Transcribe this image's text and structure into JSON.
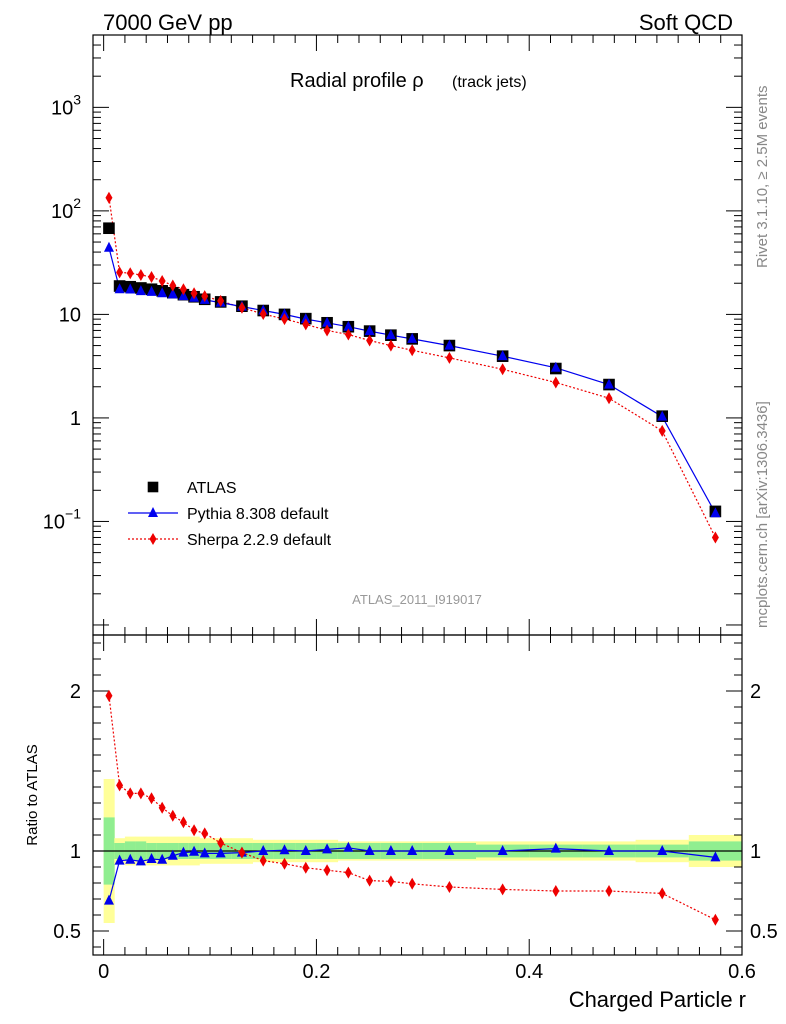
{
  "header": {
    "left": "7000 GeV pp",
    "right": "Soft QCD"
  },
  "side_labels": {
    "upper": "Rivet 3.1.10, ≥ 2.5M events",
    "lower": "mcplots.cern.ch [arXiv:1306.3436]"
  },
  "colors": {
    "atlas": "#000000",
    "pythia": "#0000ee",
    "sherpa": "#ee0000",
    "band_inner": "#90ee90",
    "band_outer": "#ffff99"
  },
  "chart_data": [
    {
      "type": "line",
      "title": "Radial profile ρ",
      "title_suffix": "(track jets)",
      "watermark": "ATLAS_2011_I919017",
      "ylog": true,
      "xlim": [
        -0.01,
        0.6
      ],
      "ylim": [
        0.008,
        5000
      ],
      "y_ticks": [
        {
          "value": 1000,
          "label": "10",
          "exp": "3"
        },
        {
          "value": 100,
          "label": "10",
          "exp": "2"
        },
        {
          "value": 10,
          "label": "10",
          "exp": ""
        },
        {
          "value": 1,
          "label": "1",
          "exp": ""
        },
        {
          "value": 0.1,
          "label": "10",
          "exp": "−1"
        }
      ],
      "x": [
        0.005,
        0.015,
        0.025,
        0.035,
        0.045,
        0.055,
        0.065,
        0.075,
        0.085,
        0.095,
        0.11,
        0.13,
        0.15,
        0.17,
        0.19,
        0.21,
        0.23,
        0.25,
        0.27,
        0.29,
        0.325,
        0.375,
        0.425,
        0.475,
        0.525,
        0.575
      ],
      "legend": [
        "ATLAS",
        "Pythia 8.308 default",
        "Sherpa 2.2.9 default"
      ],
      "legend_position": "bottom-left",
      "series": [
        {
          "name": "ATLAS",
          "marker": "square",
          "values": [
            68,
            18.8,
            18.5,
            18.0,
            17.5,
            16.9,
            16.2,
            15.5,
            14.8,
            14.0,
            13.2,
            12.0,
            10.9,
            10.0,
            9.1,
            8.3,
            7.6,
            6.9,
            6.3,
            5.8,
            5.0,
            3.95,
            3.0,
            2.1,
            1.04,
            0.125
          ]
        },
        {
          "name": "Pythia 8.308 default",
          "marker": "triangle",
          "values": [
            44,
            17.5,
            17.4,
            16.8,
            16.5,
            16.0,
            15.6,
            15.0,
            14.5,
            13.8,
            13.0,
            11.9,
            10.9,
            10.0,
            9.0,
            8.3,
            7.6,
            6.9,
            6.3,
            5.8,
            5.0,
            3.95,
            3.05,
            2.1,
            1.03,
            0.12
          ]
        },
        {
          "name": "Sherpa 2.2.9 default",
          "marker": "diamond",
          "values": [
            134,
            25.5,
            25.0,
            24.0,
            23.0,
            21.0,
            19.0,
            17.5,
            16.0,
            15.0,
            13.5,
            11.6,
            10.1,
            9.0,
            8.0,
            7.0,
            6.4,
            5.6,
            5.0,
            4.5,
            3.8,
            2.95,
            2.2,
            1.55,
            0.75,
            0.07
          ]
        }
      ]
    },
    {
      "type": "line",
      "ylabel": "Ratio to ATLAS",
      "xlabel": "Charged Particle r",
      "xlim": [
        -0.01,
        0.6
      ],
      "ylim": [
        0.35,
        2.35
      ],
      "x_ticks": [
        {
          "value": 0,
          "label": "0"
        },
        {
          "value": 0.2,
          "label": "0.2"
        },
        {
          "value": 0.4,
          "label": "0.4"
        },
        {
          "value": 0.6,
          "label": "0.6"
        }
      ],
      "y_ticks": [
        {
          "value": 2,
          "label": "2"
        },
        {
          "value": 1,
          "label": "1"
        },
        {
          "value": 0.5,
          "label": "0.5"
        }
      ],
      "x_edges": [
        0,
        0.01,
        0.02,
        0.03,
        0.04,
        0.05,
        0.06,
        0.07,
        0.08,
        0.09,
        0.1,
        0.12,
        0.14,
        0.16,
        0.18,
        0.2,
        0.22,
        0.24,
        0.26,
        0.28,
        0.3,
        0.35,
        0.4,
        0.45,
        0.5,
        0.55,
        0.6
      ],
      "band_inner": [
        0.21,
        0.05,
        0.06,
        0.06,
        0.05,
        0.05,
        0.05,
        0.05,
        0.05,
        0.05,
        0.05,
        0.05,
        0.05,
        0.05,
        0.05,
        0.05,
        0.05,
        0.05,
        0.05,
        0.05,
        0.05,
        0.04,
        0.04,
        0.04,
        0.04,
        0.06
      ],
      "band_outer": [
        0.45,
        0.08,
        0.09,
        0.09,
        0.09,
        0.09,
        0.09,
        0.09,
        0.09,
        0.08,
        0.08,
        0.08,
        0.07,
        0.07,
        0.07,
        0.07,
        0.06,
        0.06,
        0.06,
        0.06,
        0.06,
        0.06,
        0.06,
        0.06,
        0.07,
        0.1
      ],
      "x": [
        0.005,
        0.015,
        0.025,
        0.035,
        0.045,
        0.055,
        0.065,
        0.075,
        0.085,
        0.095,
        0.11,
        0.13,
        0.15,
        0.17,
        0.19,
        0.21,
        0.23,
        0.25,
        0.27,
        0.29,
        0.325,
        0.375,
        0.425,
        0.475,
        0.525,
        0.575
      ],
      "series": [
        {
          "name": "Pythia 8.308 default",
          "marker": "triangle",
          "values": [
            0.69,
            0.94,
            0.945,
            0.935,
            0.95,
            0.945,
            0.97,
            0.99,
            0.995,
            0.985,
            0.985,
            0.99,
            1.0,
            1.005,
            1.0,
            1.01,
            1.02,
            1.0,
            1.0,
            1.0,
            1.0,
            1.0,
            1.015,
            1.0,
            1.0,
            0.96
          ]
        },
        {
          "name": "Sherpa 2.2.9 default",
          "marker": "diamond",
          "values": [
            1.97,
            1.41,
            1.36,
            1.36,
            1.33,
            1.27,
            1.22,
            1.18,
            1.13,
            1.11,
            1.05,
            0.99,
            0.94,
            0.92,
            0.895,
            0.88,
            0.865,
            0.815,
            0.81,
            0.795,
            0.775,
            0.76,
            0.75,
            0.75,
            0.735,
            0.57
          ]
        }
      ]
    }
  ]
}
